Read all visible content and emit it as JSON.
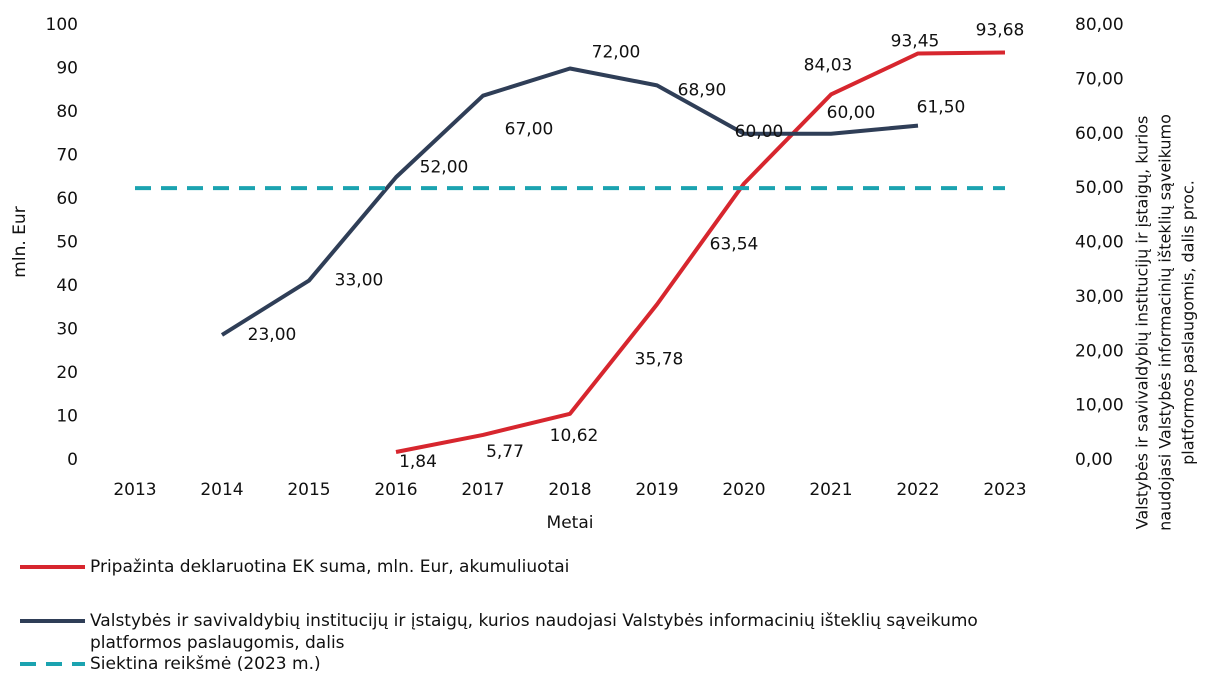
{
  "chart_data": {
    "type": "line",
    "x_label": "Metai",
    "y_label": "mln. Eur",
    "y2_label": "Valstybės ir savivaldybių institucijų ir įstaigų, kurios naudojasi Valstybės informacinių išteklių sąveikumo platformos paslaugomis, dalis proc.",
    "categories": [
      "2013",
      "2014",
      "2015",
      "2016",
      "2017",
      "2018",
      "2019",
      "2020",
      "2021",
      "2022",
      "2023"
    ],
    "ylim": [
      0,
      100
    ],
    "yticks": [
      0,
      10,
      20,
      30,
      40,
      50,
      60,
      70,
      80,
      90,
      100
    ],
    "y2lim": [
      0,
      80
    ],
    "y2ticks": [
      {
        "value": 0,
        "label": "0,00"
      },
      {
        "value": 10,
        "label": "10,00"
      },
      {
        "value": 20,
        "label": "20,00"
      },
      {
        "value": 30,
        "label": "30,00"
      },
      {
        "value": 40,
        "label": "40,00"
      },
      {
        "value": 50,
        "label": "50,00"
      },
      {
        "value": 60,
        "label": "60,00"
      },
      {
        "value": 70,
        "label": "70,00"
      },
      {
        "value": 80,
        "label": "80,00"
      }
    ],
    "series": [
      {
        "name": "Pripažinta deklaruotina EK suma, mln. Eur, akumuliuotai",
        "color": "#d7262e",
        "axis": "y",
        "values": [
          null,
          null,
          null,
          1.84,
          5.77,
          10.62,
          35.78,
          63.54,
          84.03,
          93.45,
          93.68
        ],
        "value_labels": [
          null,
          null,
          null,
          "1,84",
          "5,77",
          "10,62",
          "35,78",
          "63,54",
          "84,03",
          "93,45",
          "93,68"
        ]
      },
      {
        "name": "Valstybės ir savivaldybių institucijų ir įstaigų, kurios naudojasi Valstybės informacinių išteklių sąveikumo platformos paslaugomis, dalis",
        "color": "#2f3e57",
        "axis": "y2",
        "values": [
          null,
          23,
          33,
          52,
          67,
          72,
          68.9,
          60,
          60,
          61.5,
          null
        ],
        "value_labels": [
          null,
          "23,00",
          "33,00",
          "52,00",
          "67,00",
          "72,00",
          "68,90",
          "60,00",
          "60,00",
          "61,50",
          null
        ]
      },
      {
        "name": "Siektina reikšmė (2023 m.)",
        "color": "#1ba3b0",
        "axis": "y2",
        "dashed": true,
        "values": [
          50,
          50,
          50,
          50,
          50,
          50,
          50,
          50,
          50,
          50,
          50
        ]
      }
    ]
  }
}
